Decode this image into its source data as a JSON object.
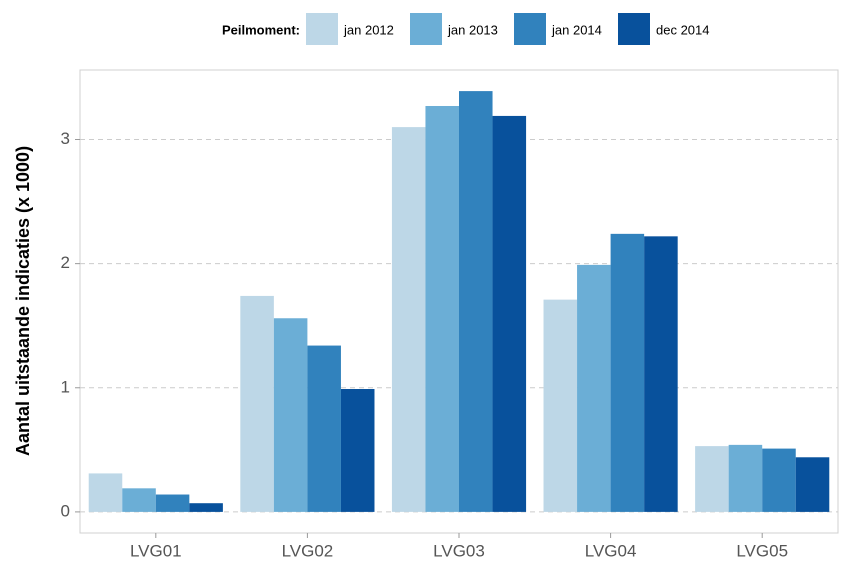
{
  "chart_data": {
    "type": "bar",
    "legend_title": "Peilmoment:",
    "y_label": "Aantal uitstaande indicaties (x 1000)",
    "categories": [
      "LVG01",
      "LVG02",
      "LVG03",
      "LVG04",
      "LVG05"
    ],
    "series": [
      {
        "name": "jan 2012",
        "color": "#bdd7e7",
        "values": [
          0.31,
          1.74,
          3.1,
          1.71,
          0.53
        ]
      },
      {
        "name": "jan 2013",
        "color": "#6baed6",
        "values": [
          0.19,
          1.56,
          3.27,
          1.99,
          0.54
        ]
      },
      {
        "name": "jan 2014",
        "color": "#3182bd",
        "values": [
          0.14,
          1.34,
          3.39,
          2.24,
          0.51
        ]
      },
      {
        "name": "dec 2014",
        "color": "#08519c",
        "values": [
          0.07,
          0.99,
          3.19,
          2.22,
          0.44
        ]
      }
    ],
    "ylim": [
      -0.17,
      3.56
    ],
    "yticks": [
      0,
      1,
      2,
      3
    ],
    "grid": true,
    "legend": "top"
  }
}
